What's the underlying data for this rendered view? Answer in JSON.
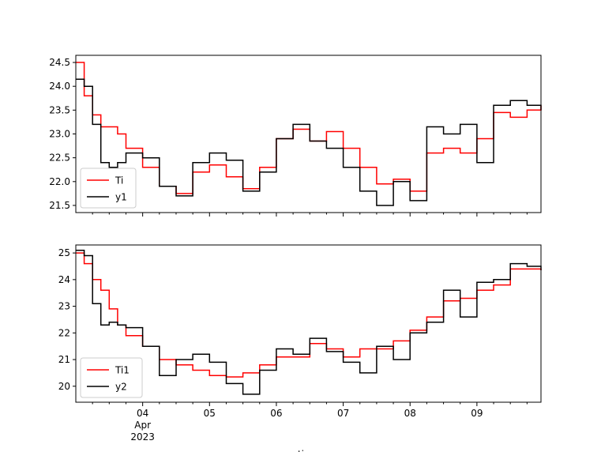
{
  "chart_data": [
    {
      "type": "line",
      "drawstyle": "steps",
      "x_range": [
        "2023-04-03 00:00",
        "2023-04-09 23:00"
      ],
      "x_ticks": [
        {
          "date": "2023-04-04",
          "label": "04",
          "sublabel": "Apr\n2023"
        },
        {
          "date": "2023-04-05",
          "label": "05"
        },
        {
          "date": "2023-04-06",
          "label": "06"
        },
        {
          "date": "2023-04-07",
          "label": "07"
        },
        {
          "date": "2023-04-08",
          "label": "08"
        },
        {
          "date": "2023-04-09",
          "label": "09"
        }
      ],
      "ylim": [
        21.35,
        24.65
      ],
      "y_ticks": [
        21.5,
        22.0,
        22.5,
        23.0,
        23.5,
        24.0,
        24.5
      ],
      "y_tick_labels": [
        "21.5",
        "22.0",
        "22.5",
        "23.0",
        "23.5",
        "24.0",
        "24.5"
      ],
      "x_tick_labels_visible": false,
      "legend_position": "lower-left",
      "grid": false,
      "series": [
        {
          "name": "Ti",
          "color": "#ff0000",
          "x": [
            "2023-04-03 00:00",
            "2023-04-03 03:00",
            "2023-04-03 06:00",
            "2023-04-03 09:00",
            "2023-04-03 12:00",
            "2023-04-03 15:00",
            "2023-04-03 18:00",
            "2023-04-04 00:00",
            "2023-04-04 06:00",
            "2023-04-04 12:00",
            "2023-04-04 18:00",
            "2023-04-05 00:00",
            "2023-04-05 06:00",
            "2023-04-05 12:00",
            "2023-04-05 18:00",
            "2023-04-06 00:00",
            "2023-04-06 06:00",
            "2023-04-06 12:00",
            "2023-04-06 18:00",
            "2023-04-07 00:00",
            "2023-04-07 06:00",
            "2023-04-07 12:00",
            "2023-04-07 18:00",
            "2023-04-08 00:00",
            "2023-04-08 06:00",
            "2023-04-08 12:00",
            "2023-04-08 18:00",
            "2023-04-09 00:00",
            "2023-04-09 06:00",
            "2023-04-09 12:00",
            "2023-04-09 18:00",
            "2023-04-09 23:00"
          ],
          "y": [
            24.5,
            23.8,
            23.4,
            23.15,
            23.15,
            23.0,
            22.7,
            22.3,
            21.9,
            21.75,
            22.2,
            22.35,
            22.1,
            21.85,
            22.3,
            22.9,
            23.1,
            22.85,
            23.05,
            22.7,
            22.3,
            21.95,
            22.05,
            21.8,
            22.6,
            22.7,
            22.6,
            22.9,
            23.45,
            23.35,
            23.5,
            23.6
          ]
        },
        {
          "name": "y1",
          "color": "#000000",
          "x": [
            "2023-04-03 00:00",
            "2023-04-03 03:00",
            "2023-04-03 06:00",
            "2023-04-03 09:00",
            "2023-04-03 12:00",
            "2023-04-03 15:00",
            "2023-04-03 18:00",
            "2023-04-04 00:00",
            "2023-04-04 06:00",
            "2023-04-04 12:00",
            "2023-04-04 18:00",
            "2023-04-05 00:00",
            "2023-04-05 06:00",
            "2023-04-05 12:00",
            "2023-04-05 18:00",
            "2023-04-06 00:00",
            "2023-04-06 06:00",
            "2023-04-06 12:00",
            "2023-04-06 18:00",
            "2023-04-07 00:00",
            "2023-04-07 06:00",
            "2023-04-07 12:00",
            "2023-04-07 18:00",
            "2023-04-08 00:00",
            "2023-04-08 06:00",
            "2023-04-08 12:00",
            "2023-04-08 18:00",
            "2023-04-09 00:00",
            "2023-04-09 06:00",
            "2023-04-09 12:00",
            "2023-04-09 18:00",
            "2023-04-09 23:00"
          ],
          "y": [
            24.15,
            24.0,
            23.2,
            22.4,
            22.3,
            22.4,
            22.6,
            22.5,
            21.9,
            21.7,
            22.4,
            22.6,
            22.45,
            21.8,
            22.2,
            22.9,
            23.2,
            22.85,
            22.7,
            22.3,
            21.8,
            21.5,
            22.0,
            21.6,
            23.15,
            23.0,
            23.2,
            22.4,
            23.6,
            23.7,
            23.6,
            23.5
          ]
        }
      ]
    },
    {
      "type": "line",
      "drawstyle": "steps",
      "x_range": [
        "2023-04-03 00:00",
        "2023-04-09 23:00"
      ],
      "x_ticks": [
        {
          "date": "2023-04-04",
          "label": "04",
          "sublabel": "Apr\n2023"
        },
        {
          "date": "2023-04-05",
          "label": "05"
        },
        {
          "date": "2023-04-06",
          "label": "06"
        },
        {
          "date": "2023-04-07",
          "label": "07"
        },
        {
          "date": "2023-04-08",
          "label": "08"
        },
        {
          "date": "2023-04-09",
          "label": "09"
        }
      ],
      "ylim": [
        19.4,
        25.3
      ],
      "y_ticks": [
        20,
        21,
        22,
        23,
        24,
        25
      ],
      "y_tick_labels": [
        "20",
        "21",
        "22",
        "23",
        "24",
        "25"
      ],
      "x_tick_labels_visible": true,
      "x_label_partial": "time",
      "legend_position": "lower-left",
      "grid": false,
      "series": [
        {
          "name": "Ti1",
          "color": "#ff0000",
          "x": [
            "2023-04-03 00:00",
            "2023-04-03 03:00",
            "2023-04-03 06:00",
            "2023-04-03 09:00",
            "2023-04-03 12:00",
            "2023-04-03 15:00",
            "2023-04-03 18:00",
            "2023-04-04 00:00",
            "2023-04-04 06:00",
            "2023-04-04 12:00",
            "2023-04-04 18:00",
            "2023-04-05 00:00",
            "2023-04-05 06:00",
            "2023-04-05 12:00",
            "2023-04-05 18:00",
            "2023-04-06 00:00",
            "2023-04-06 06:00",
            "2023-04-06 12:00",
            "2023-04-06 18:00",
            "2023-04-07 00:00",
            "2023-04-07 06:00",
            "2023-04-07 12:00",
            "2023-04-07 18:00",
            "2023-04-08 00:00",
            "2023-04-08 06:00",
            "2023-04-08 12:00",
            "2023-04-08 18:00",
            "2023-04-09 00:00",
            "2023-04-09 06:00",
            "2023-04-09 12:00",
            "2023-04-09 18:00",
            "2023-04-09 23:00"
          ],
          "y": [
            25.0,
            24.6,
            24.0,
            23.6,
            22.9,
            22.3,
            21.9,
            21.5,
            21.0,
            20.8,
            20.6,
            20.4,
            20.35,
            20.5,
            20.8,
            21.1,
            21.1,
            21.6,
            21.4,
            21.1,
            21.4,
            21.4,
            21.7,
            22.1,
            22.6,
            23.2,
            23.3,
            23.6,
            23.8,
            24.4,
            24.4,
            24.35
          ]
        },
        {
          "name": "y2",
          "color": "#000000",
          "x": [
            "2023-04-03 00:00",
            "2023-04-03 03:00",
            "2023-04-03 06:00",
            "2023-04-03 09:00",
            "2023-04-03 12:00",
            "2023-04-03 15:00",
            "2023-04-03 18:00",
            "2023-04-04 00:00",
            "2023-04-04 06:00",
            "2023-04-04 12:00",
            "2023-04-04 18:00",
            "2023-04-05 00:00",
            "2023-04-05 06:00",
            "2023-04-05 12:00",
            "2023-04-05 18:00",
            "2023-04-06 00:00",
            "2023-04-06 06:00",
            "2023-04-06 12:00",
            "2023-04-06 18:00",
            "2023-04-07 00:00",
            "2023-04-07 06:00",
            "2023-04-07 12:00",
            "2023-04-07 18:00",
            "2023-04-08 00:00",
            "2023-04-08 06:00",
            "2023-04-08 12:00",
            "2023-04-08 18:00",
            "2023-04-09 00:00",
            "2023-04-09 06:00",
            "2023-04-09 12:00",
            "2023-04-09 18:00",
            "2023-04-09 23:00"
          ],
          "y": [
            25.1,
            24.9,
            23.1,
            22.3,
            22.4,
            22.3,
            22.2,
            21.5,
            20.4,
            21.0,
            21.2,
            20.9,
            20.1,
            19.7,
            20.6,
            21.4,
            21.2,
            21.8,
            21.3,
            20.9,
            20.5,
            21.5,
            21.0,
            22.0,
            22.4,
            23.6,
            22.6,
            23.9,
            24.0,
            24.6,
            24.5,
            24.35
          ]
        }
      ]
    }
  ]
}
